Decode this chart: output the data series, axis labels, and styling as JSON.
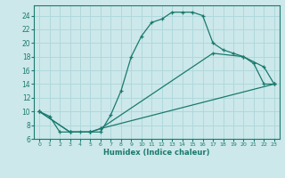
{
  "xlabel": "Humidex (Indice chaleur)",
  "background_color": "#cce8ea",
  "grid_color": "#b0d8dc",
  "line_color": "#1a7a6e",
  "xlim": [
    -0.5,
    23.5
  ],
  "ylim": [
    6,
    25.5
  ],
  "xticks": [
    0,
    1,
    2,
    3,
    4,
    5,
    6,
    7,
    8,
    9,
    10,
    11,
    12,
    13,
    14,
    15,
    16,
    17,
    18,
    19,
    20,
    21,
    22,
    23
  ],
  "yticks": [
    6,
    8,
    10,
    12,
    14,
    16,
    18,
    20,
    22,
    24
  ],
  "line1_x": [
    0,
    1,
    2,
    3,
    4,
    5,
    6,
    7,
    8,
    9,
    10,
    11,
    12,
    13,
    14,
    15,
    16,
    17,
    18,
    19,
    20,
    21,
    22,
    23
  ],
  "line1_y": [
    10,
    9.3,
    7,
    7,
    7,
    7,
    7,
    9.5,
    13,
    18,
    21,
    23,
    23.5,
    24.5,
    24.5,
    24.5,
    24,
    20,
    19,
    18.5,
    18,
    17,
    14,
    14
  ],
  "line2_x": [
    0,
    3,
    5,
    6,
    23
  ],
  "line2_y": [
    10,
    7,
    7,
    7.5,
    14
  ],
  "line3_x": [
    0,
    3,
    5,
    6,
    17,
    20,
    22,
    23
  ],
  "line3_y": [
    10,
    7,
    7,
    7.5,
    18.5,
    18,
    16.5,
    14
  ]
}
